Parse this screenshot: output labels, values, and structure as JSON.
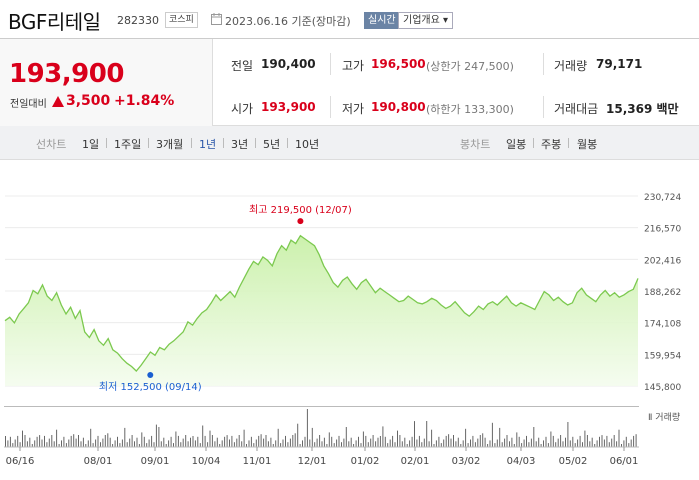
{
  "header": {
    "name": "BGF리테일",
    "code": "282330",
    "market": "코스피",
    "datetime": "2023.06.16 기준(장마감)",
    "realtime_label": "실시간",
    "company_info_label": "기업개요 ▾"
  },
  "quote": {
    "price": "193,900",
    "diff_label": "전일대비",
    "diff": "3,500",
    "pct": "+1.84%",
    "prev_label": "전일",
    "prev": "190,400",
    "high_label": "고가",
    "high": "196,500",
    "upper_limit": "(상한가 247,500)",
    "volume_label": "거래량",
    "volume": "79,171",
    "open_label": "시가",
    "open": "193,900",
    "low_label": "저가",
    "low": "190,800",
    "lower_limit": "(하한가 133,300)",
    "amount_label": "거래대금",
    "amount": "15,369 백만"
  },
  "toolbar": {
    "line_label": "선차트",
    "periods": [
      "1일",
      "1주일",
      "3개월",
      "1년",
      "3년",
      "5년",
      "10년"
    ],
    "selected_period": "1년",
    "candle_label": "봉차트",
    "candles": [
      "일봉",
      "주봉",
      "월봉"
    ]
  },
  "colors": {
    "up": "#d9001b",
    "down": "#1a5fd1",
    "line": "#7cc94f",
    "fill_top": "#c9f0a8"
  },
  "chart_data": {
    "type": "area",
    "title": "",
    "xlabel": "",
    "ylabel": "",
    "y_ticks": [
      230724,
      216570,
      202416,
      188262,
      174108,
      159954,
      145800
    ],
    "y_tick_labels": [
      "230,724",
      "216,570",
      "202,416",
      "188,262",
      "174,108",
      "159,954",
      "145,800"
    ],
    "ylim": [
      145800,
      230724
    ],
    "x_ticks": [
      "06/16",
      "08/01",
      "09/01",
      "10/04",
      "11/01",
      "12/01",
      "01/02",
      "02/01",
      "03/02",
      "04/03",
      "05/02",
      "06/01"
    ],
    "max_label": "최고 219,500 (12/07)",
    "min_label": "최저 152,500 (09/14)",
    "volume_label": "거래량",
    "values": [
      175000,
      176500,
      174000,
      178000,
      180500,
      183000,
      188500,
      187000,
      191000,
      186000,
      184000,
      187500,
      182000,
      178000,
      181000,
      176000,
      179500,
      170000,
      167500,
      171000,
      166000,
      164000,
      167000,
      162000,
      160500,
      158000,
      156000,
      154500,
      152500,
      155000,
      158000,
      161000,
      159500,
      163000,
      162000,
      164500,
      166000,
      168000,
      170000,
      174500,
      173000,
      176000,
      178500,
      180000,
      183000,
      186500,
      184000,
      186000,
      188000,
      185500,
      190000,
      194000,
      198000,
      201500,
      200000,
      203500,
      202000,
      199500,
      205000,
      208500,
      206500,
      211000,
      209500,
      213000,
      211500,
      210000,
      208500,
      204500,
      199500,
      196000,
      192000,
      190000,
      193000,
      194500,
      191500,
      189000,
      192000,
      193500,
      190500,
      187500,
      189500,
      188000,
      186500,
      185000,
      183500,
      184000,
      186000,
      184500,
      183000,
      182500,
      183500,
      185000,
      184000,
      182000,
      180500,
      181500,
      183500,
      181000,
      178500,
      177000,
      179000,
      181500,
      180000,
      182500,
      183500,
      182000,
      184000,
      186000,
      183000,
      181500,
      183000,
      182000,
      181000,
      180000,
      184000,
      188000,
      186500,
      184000,
      185500,
      183500,
      182000,
      183000,
      187500,
      189500,
      186500,
      185000,
      183500,
      186500,
      188500,
      186000,
      187500,
      185500,
      186500,
      188000,
      189000,
      193900
    ]
  }
}
